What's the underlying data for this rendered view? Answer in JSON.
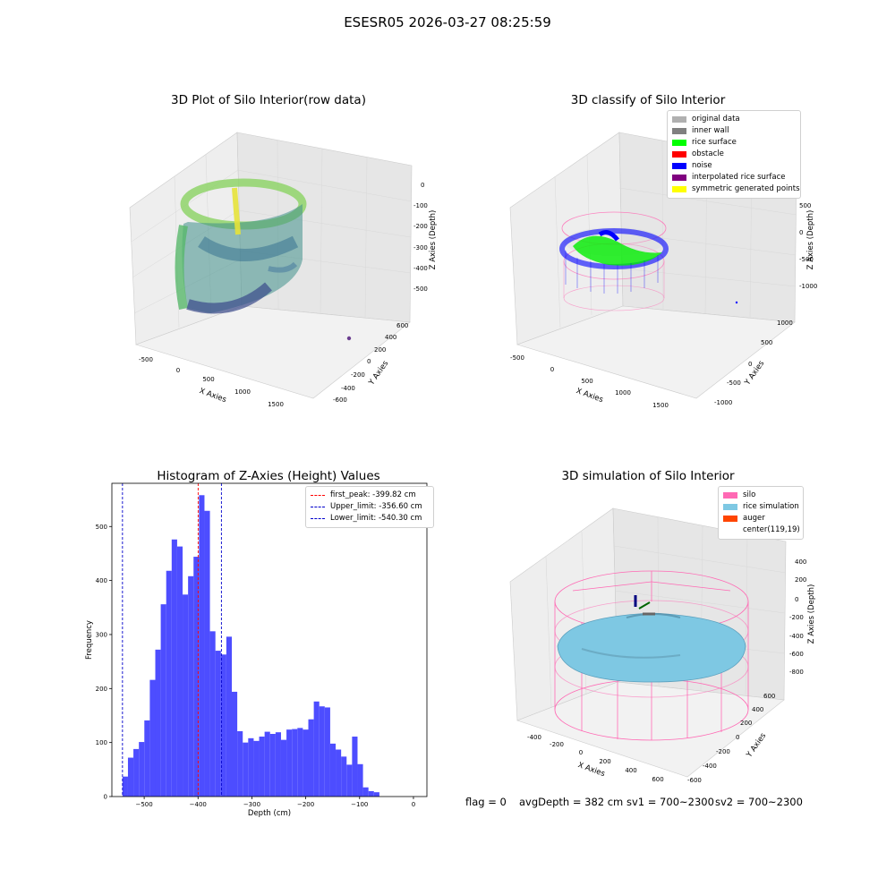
{
  "suptitle": "ESESR05 2026-03-27 08:25:59",
  "panels": {
    "raw": {
      "title": "3D Plot of Silo Interior(row data)",
      "xlabel": "X Axies",
      "ylabel": "Y Axies",
      "zlabel": "Z Axies (Depth)",
      "xticks": [
        "-500",
        "0",
        "500",
        "1000",
        "1500"
      ],
      "yticks": [
        "-600",
        "-400",
        "-200",
        "0",
        "200",
        "400",
        "600"
      ],
      "zticks": [
        "0",
        "-100",
        "-200",
        "-300",
        "-400",
        "-500"
      ]
    },
    "classify": {
      "title": "3D classify of Silo Interior",
      "xlabel": "X Axies",
      "ylabel": "Y Axies",
      "zlabel": "Z Axies (Depth)",
      "xticks": [
        "-500",
        "0",
        "500",
        "1000",
        "1500"
      ],
      "yticks": [
        "-1000",
        "-500",
        "0",
        "500",
        "1000"
      ],
      "zticks": [
        "500",
        "0",
        "-500",
        "-1000"
      ],
      "legend": [
        {
          "label": "original data",
          "color": "#b0b0b0"
        },
        {
          "label": "inner wall",
          "color": "#808080"
        },
        {
          "label": "rice surface",
          "color": "#00ff00"
        },
        {
          "label": "obstacle",
          "color": "#ff0000"
        },
        {
          "label": "noise",
          "color": "#0000ff"
        },
        {
          "label": "interpolated rice surface",
          "color": "#800080"
        },
        {
          "label": "symmetric generated points",
          "color": "#ffff00"
        }
      ]
    },
    "simulation": {
      "title": "3D simulation of Silo Interior",
      "xlabel": "X Axies",
      "ylabel": "Y Axies",
      "zlabel": "Z Axies (Depth)",
      "xticks": [
        "-400",
        "-200",
        "0",
        "200",
        "400",
        "600"
      ],
      "yticks": [
        "-600",
        "-400",
        "-200",
        "0",
        "200",
        "400",
        "600"
      ],
      "zticks": [
        "400",
        "200",
        "0",
        "-200",
        "-400",
        "-600",
        "-800"
      ],
      "legend": [
        {
          "label": "silo",
          "color": "#ff69b4"
        },
        {
          "label": "rice simulation",
          "color": "#7ec8e3"
        },
        {
          "label": "auger",
          "color": "#ff4500"
        },
        {
          "label": "center(119,19)",
          "color": ""
        }
      ]
    }
  },
  "chart_data": {
    "type": "bar",
    "title": "Histogram of Z-Axies (Height) Values",
    "xlabel": "Depth (cm)",
    "ylabel": "Frequency",
    "xlim": [
      -560,
      25
    ],
    "ylim": [
      0,
      580
    ],
    "xticks": [
      -500,
      -400,
      -300,
      -200,
      -100,
      0
    ],
    "yticks": [
      0,
      100,
      200,
      300,
      400,
      500
    ],
    "bar_color": "#4d4dff",
    "bin_start": -540.3,
    "bin_width": 10.15,
    "values": [
      37,
      72,
      88,
      101,
      141,
      216,
      272,
      356,
      418,
      476,
      463,
      374,
      408,
      444,
      558,
      529,
      306,
      270,
      263,
      296,
      194,
      121,
      100,
      108,
      103,
      111,
      120,
      116,
      119,
      105,
      124,
      125,
      127,
      124,
      143,
      176,
      167,
      165,
      98,
      87,
      74,
      59,
      111,
      60,
      17,
      10,
      8
    ],
    "lines": [
      {
        "label": "first_peak: -399.82 cm",
        "x": -399.82,
        "color": "#ff0000"
      },
      {
        "label": "Upper_limit: -356.60 cm",
        "x": -356.6,
        "color": "#0000cc"
      },
      {
        "label": "Lower_limit: -540.30 cm",
        "x": -540.3,
        "color": "#0000cc"
      }
    ]
  },
  "footer": {
    "flag": "flag = 0",
    "avg": "avgDepth = 382 cm",
    "sv1": "sv1 = 700~2300",
    "sv2": "sv2 = 700~2300"
  }
}
